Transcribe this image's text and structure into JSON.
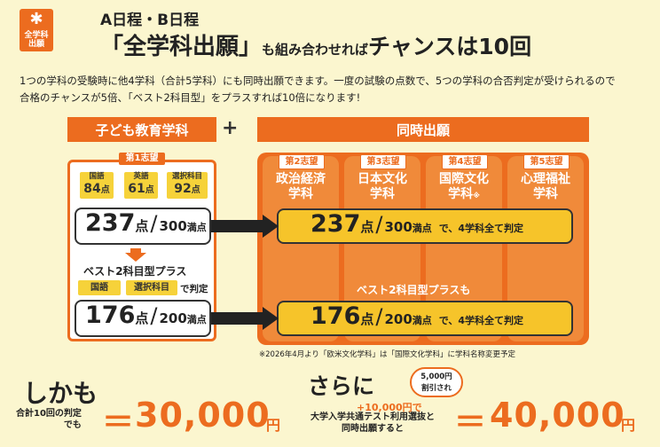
{
  "logo": {
    "line1": "全学科",
    "line2": "出願"
  },
  "header": {
    "subtitle": "A日程・B日程",
    "title_main": "「全学科出願」",
    "title_mid": "も組み合わせれば",
    "title_chance": "チャンスは10回"
  },
  "description": {
    "line1": "1つの学科の受験時に他4学科（合計5学科）にも同時出願できます。一度の試験の点数で、5つの学科の合否判定が受けられるので",
    "line2": "合格のチャンスが5倍、「ベスト2科目型」をプラスすれば10倍になります!"
  },
  "left": {
    "header": "子ども教育学科",
    "choice_tag": "第1志望",
    "subjects": [
      {
        "name": "国語",
        "score": "84",
        "unit": "点"
      },
      {
        "name": "英語",
        "score": "61",
        "unit": "点"
      },
      {
        "name": "選択科目",
        "score": "92",
        "unit": "点"
      }
    ],
    "total": {
      "score": "237",
      "unit": "点",
      "max": "300",
      "max_unit": "満点"
    },
    "best_label": "ベスト2科目型プラス",
    "best_subjects": [
      "国語",
      "選択科目"
    ],
    "best_suffix": "で判定",
    "best_total": {
      "score": "176",
      "unit": "点",
      "max": "200",
      "max_unit": "満点"
    }
  },
  "plus_sign": "+",
  "right": {
    "header": "同時出願",
    "columns": [
      {
        "tag": "第2志望",
        "name1": "政治経済",
        "name2": "学科",
        "mark": ""
      },
      {
        "tag": "第3志望",
        "name1": "日本文化",
        "name2": "学科",
        "mark": ""
      },
      {
        "tag": "第4志望",
        "name1": "国際文化",
        "name2": "学科",
        "mark": "※"
      },
      {
        "tag": "第5志望",
        "name1": "心理福祉",
        "name2": "学科",
        "mark": ""
      }
    ],
    "bar1": {
      "score": "237",
      "unit": "点",
      "max": "300",
      "max_unit": "満点",
      "rest": "で、4学科全て判定"
    },
    "best_label": "ベスト2科目型プラスも",
    "bar2": {
      "score": "176",
      "unit": "点",
      "max": "200",
      "max_unit": "満点",
      "rest": "で、4学科全て判定"
    }
  },
  "note": "※2026年4月より「欧米文化学科」は「国際文化学科」に学科名称変更予定",
  "bottom": {
    "shikamo": "しかも",
    "left_small1": "合計10回の判定",
    "left_small2": "でも",
    "eq": "＝",
    "price_left": "30,000",
    "yen": "円",
    "sarani": "さらに",
    "bubble1": "5,000円",
    "bubble2": "割引され",
    "plus_amount": "+10,000円で",
    "right_small1": "大学入学共通テスト利用選抜と",
    "right_small2": "同時出願すると",
    "price_right": "40,000"
  }
}
